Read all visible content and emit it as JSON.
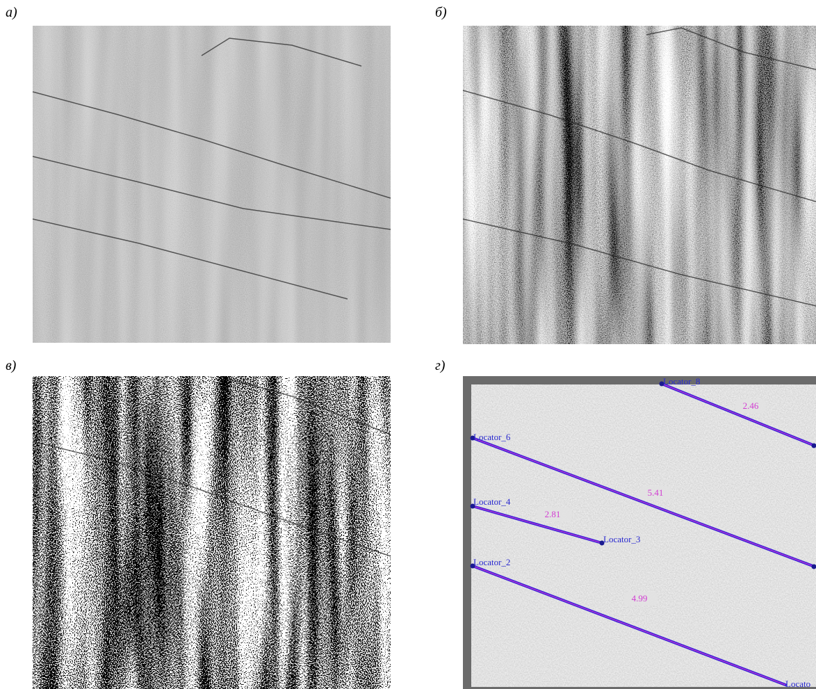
{
  "panels": [
    {
      "label": "а)"
    },
    {
      "label": "б)"
    },
    {
      "label": "в)"
    },
    {
      "label": "г)",
      "locators": [
        "Locator_8",
        "Locator_6",
        "Locator_4",
        "Locator_3",
        "Locator_2",
        "Locato"
      ],
      "measurements": [
        "2.46",
        "5.41",
        "2.81",
        "4.99"
      ]
    }
  ]
}
